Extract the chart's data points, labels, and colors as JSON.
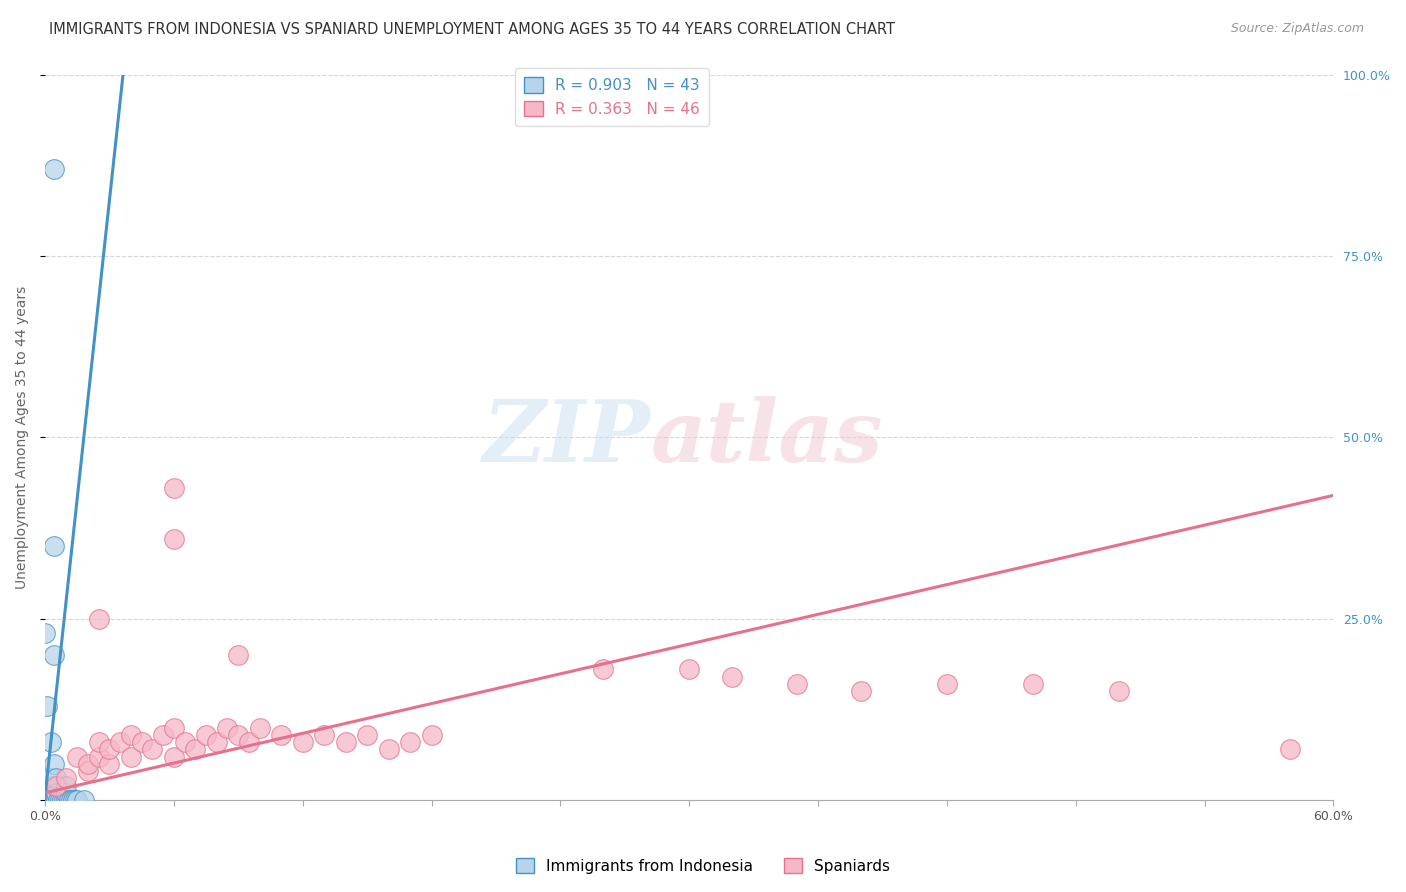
{
  "title": "IMMIGRANTS FROM INDONESIA VS SPANIARD UNEMPLOYMENT AMONG AGES 35 TO 44 YEARS CORRELATION CHART",
  "source": "Source: ZipAtlas.com",
  "ylabel": "Unemployment Among Ages 35 to 44 years",
  "xlim": [
    0.0,
    0.6
  ],
  "ylim": [
    0.0,
    1.0
  ],
  "xtick_positions": [
    0.0,
    0.06,
    0.12,
    0.18,
    0.24,
    0.3,
    0.36,
    0.42,
    0.48,
    0.54,
    0.6
  ],
  "xtick_labels_show": {
    "0.0": "0.0%",
    "0.60": "60.0%"
  },
  "ytick_positions": [
    0.0,
    0.25,
    0.5,
    0.75,
    1.0
  ],
  "ytick_right_labels": [
    "",
    "25.0%",
    "50.0%",
    "75.0%",
    "100.0%"
  ],
  "legend_r1": "R = 0.903   N = 43",
  "legend_r2": "R = 0.363   N = 46",
  "blue_color": "#4292c6",
  "pink_color": "#e8708a",
  "blue_scatter_color": "#b8d4ea",
  "pink_scatter_color": "#f5b8c8",
  "grid_color": "#cccccc",
  "background_color": "#ffffff",
  "watermark_zip": "ZIP",
  "watermark_atlas": "atlas",
  "blue_scatter": [
    [
      0.0,
      0.0
    ],
    [
      0.0,
      0.002
    ],
    [
      0.001,
      0.0
    ],
    [
      0.001,
      0.003
    ],
    [
      0.001,
      0.005
    ],
    [
      0.001,
      0.01
    ],
    [
      0.001,
      0.02
    ],
    [
      0.002,
      0.0
    ],
    [
      0.002,
      0.002
    ],
    [
      0.002,
      0.005
    ],
    [
      0.002,
      0.008
    ],
    [
      0.002,
      0.015
    ],
    [
      0.002,
      0.02
    ],
    [
      0.003,
      0.0
    ],
    [
      0.003,
      0.003
    ],
    [
      0.003,
      0.01
    ],
    [
      0.003,
      0.02
    ],
    [
      0.003,
      0.03
    ],
    [
      0.003,
      0.08
    ],
    [
      0.004,
      0.0
    ],
    [
      0.004,
      0.005
    ],
    [
      0.004,
      0.05
    ],
    [
      0.004,
      0.2
    ],
    [
      0.004,
      0.35
    ],
    [
      0.005,
      0.0
    ],
    [
      0.005,
      0.01
    ],
    [
      0.005,
      0.03
    ],
    [
      0.006,
      0.0
    ],
    [
      0.007,
      0.0
    ],
    [
      0.008,
      0.0
    ],
    [
      0.009,
      0.0
    ],
    [
      0.01,
      0.0
    ],
    [
      0.01,
      0.01
    ],
    [
      0.01,
      0.02
    ],
    [
      0.011,
      0.0
    ],
    [
      0.012,
      0.0
    ],
    [
      0.013,
      0.0
    ],
    [
      0.014,
      0.0
    ],
    [
      0.015,
      0.0
    ],
    [
      0.018,
      0.0
    ],
    [
      0.0,
      0.23
    ],
    [
      0.001,
      0.13
    ],
    [
      0.004,
      0.87
    ]
  ],
  "pink_scatter": [
    [
      0.005,
      0.02
    ],
    [
      0.01,
      0.03
    ],
    [
      0.015,
      0.06
    ],
    [
      0.02,
      0.04
    ],
    [
      0.02,
      0.05
    ],
    [
      0.025,
      0.06
    ],
    [
      0.025,
      0.08
    ],
    [
      0.03,
      0.05
    ],
    [
      0.03,
      0.07
    ],
    [
      0.035,
      0.08
    ],
    [
      0.04,
      0.06
    ],
    [
      0.04,
      0.09
    ],
    [
      0.045,
      0.08
    ],
    [
      0.05,
      0.07
    ],
    [
      0.055,
      0.09
    ],
    [
      0.06,
      0.06
    ],
    [
      0.06,
      0.1
    ],
    [
      0.065,
      0.08
    ],
    [
      0.07,
      0.07
    ],
    [
      0.075,
      0.09
    ],
    [
      0.08,
      0.08
    ],
    [
      0.085,
      0.1
    ],
    [
      0.09,
      0.09
    ],
    [
      0.095,
      0.08
    ],
    [
      0.1,
      0.1
    ],
    [
      0.11,
      0.09
    ],
    [
      0.12,
      0.08
    ],
    [
      0.13,
      0.09
    ],
    [
      0.14,
      0.08
    ],
    [
      0.15,
      0.09
    ],
    [
      0.16,
      0.07
    ],
    [
      0.17,
      0.08
    ],
    [
      0.18,
      0.09
    ],
    [
      0.025,
      0.25
    ],
    [
      0.06,
      0.36
    ],
    [
      0.06,
      0.43
    ],
    [
      0.09,
      0.2
    ],
    [
      0.26,
      0.18
    ],
    [
      0.3,
      0.18
    ],
    [
      0.32,
      0.17
    ],
    [
      0.35,
      0.16
    ],
    [
      0.38,
      0.15
    ],
    [
      0.42,
      0.16
    ],
    [
      0.46,
      0.16
    ],
    [
      0.5,
      0.15
    ],
    [
      0.58,
      0.07
    ]
  ],
  "blue_line_x": [
    -0.002,
    0.04
  ],
  "blue_line_y": [
    -0.05,
    1.1
  ],
  "pink_line_x": [
    0.0,
    0.6
  ],
  "pink_line_y": [
    0.01,
    0.42
  ],
  "title_fontsize": 10.5,
  "source_fontsize": 9,
  "axis_label_fontsize": 10,
  "tick_fontsize": 9,
  "legend_fontsize": 11
}
